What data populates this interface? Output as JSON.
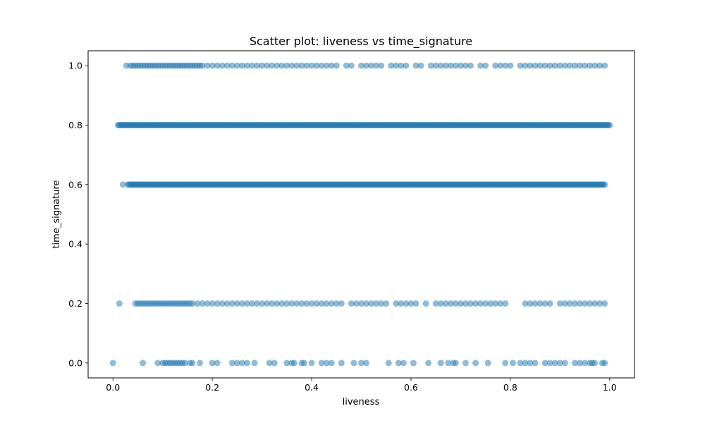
{
  "chart_data": {
    "type": "scatter",
    "title": "Scatter plot: liveness vs time_signature",
    "xlabel": "liveness",
    "ylabel": "time_signature",
    "xlim": [
      -0.05,
      1.05
    ],
    "ylim": [
      -0.05,
      1.05
    ],
    "xticks": [
      0.0,
      0.2,
      0.4,
      0.6,
      0.8,
      1.0
    ],
    "yticks": [
      0.0,
      0.2,
      0.4,
      0.6,
      0.8,
      1.0
    ],
    "xtick_labels": [
      "0.0",
      "0.2",
      "0.4",
      "0.6",
      "0.8",
      "1.0"
    ],
    "ytick_labels": [
      "0.0",
      "0.2",
      "0.4",
      "0.6",
      "0.8",
      "1.0"
    ],
    "grid": false,
    "marker_color": "#1f77b4",
    "marker_alpha": 0.5,
    "series": [
      {
        "y": 1.0,
        "x": [
          0.027,
          0.035,
          0.04,
          0.045,
          0.05,
          0.055,
          0.06,
          0.065,
          0.07,
          0.075,
          0.08,
          0.085,
          0.09,
          0.095,
          0.1,
          0.105,
          0.11,
          0.115,
          0.12,
          0.125,
          0.13,
          0.135,
          0.14,
          0.145,
          0.15,
          0.155,
          0.16,
          0.165,
          0.17,
          0.175,
          0.18,
          0.19,
          0.2,
          0.21,
          0.22,
          0.23,
          0.24,
          0.25,
          0.26,
          0.27,
          0.28,
          0.29,
          0.3,
          0.31,
          0.32,
          0.33,
          0.34,
          0.35,
          0.36,
          0.37,
          0.38,
          0.39,
          0.4,
          0.41,
          0.42,
          0.43,
          0.44,
          0.45,
          0.47,
          0.48,
          0.5,
          0.51,
          0.52,
          0.53,
          0.54,
          0.56,
          0.57,
          0.58,
          0.59,
          0.61,
          0.62,
          0.64,
          0.65,
          0.66,
          0.67,
          0.68,
          0.69,
          0.7,
          0.71,
          0.72,
          0.74,
          0.75,
          0.77,
          0.78,
          0.79,
          0.8,
          0.82,
          0.83,
          0.84,
          0.85,
          0.86,
          0.87,
          0.88,
          0.89,
          0.9,
          0.91,
          0.92,
          0.93,
          0.94,
          0.95,
          0.96,
          0.97,
          0.98,
          0.99
        ]
      },
      {
        "y": 0.8,
        "x_range": [
          0.01,
          1.0
        ],
        "dense": true
      },
      {
        "y": 0.6,
        "x": [
          0.02
        ],
        "x_range": [
          0.03,
          0.99
        ],
        "dense": true
      },
      {
        "y": 0.2,
        "x": [
          0.013,
          0.045,
          0.05,
          0.055,
          0.06,
          0.065,
          0.07,
          0.075,
          0.08,
          0.085,
          0.09,
          0.095,
          0.1,
          0.105,
          0.11,
          0.115,
          0.12,
          0.125,
          0.13,
          0.135,
          0.14,
          0.145,
          0.15,
          0.155,
          0.16,
          0.17,
          0.18,
          0.19,
          0.2,
          0.21,
          0.22,
          0.23,
          0.24,
          0.25,
          0.26,
          0.27,
          0.28,
          0.29,
          0.3,
          0.31,
          0.32,
          0.33,
          0.34,
          0.35,
          0.36,
          0.37,
          0.38,
          0.39,
          0.4,
          0.41,
          0.42,
          0.43,
          0.44,
          0.45,
          0.46,
          0.48,
          0.49,
          0.5,
          0.51,
          0.52,
          0.53,
          0.54,
          0.55,
          0.57,
          0.58,
          0.59,
          0.6,
          0.61,
          0.63,
          0.65,
          0.66,
          0.67,
          0.68,
          0.69,
          0.7,
          0.71,
          0.72,
          0.73,
          0.74,
          0.75,
          0.76,
          0.77,
          0.78,
          0.79,
          0.83,
          0.84,
          0.85,
          0.86,
          0.87,
          0.88,
          0.9,
          0.91,
          0.92,
          0.93,
          0.94,
          0.95,
          0.96,
          0.97,
          0.98,
          0.99
        ]
      },
      {
        "y": 0.0,
        "x": [
          0.0,
          0.06,
          0.09,
          0.1,
          0.105,
          0.11,
          0.115,
          0.12,
          0.125,
          0.13,
          0.135,
          0.14,
          0.145,
          0.155,
          0.16,
          0.175,
          0.2,
          0.21,
          0.24,
          0.25,
          0.26,
          0.27,
          0.285,
          0.315,
          0.325,
          0.35,
          0.36,
          0.365,
          0.38,
          0.385,
          0.4,
          0.42,
          0.43,
          0.44,
          0.46,
          0.485,
          0.5,
          0.51,
          0.555,
          0.575,
          0.585,
          0.605,
          0.635,
          0.66,
          0.675,
          0.685,
          0.69,
          0.71,
          0.73,
          0.755,
          0.79,
          0.805,
          0.82,
          0.83,
          0.84,
          0.85,
          0.87,
          0.88,
          0.89,
          0.9,
          0.91,
          0.93,
          0.94,
          0.95,
          0.96,
          0.965,
          0.97,
          0.985,
          0.99
        ]
      }
    ]
  }
}
